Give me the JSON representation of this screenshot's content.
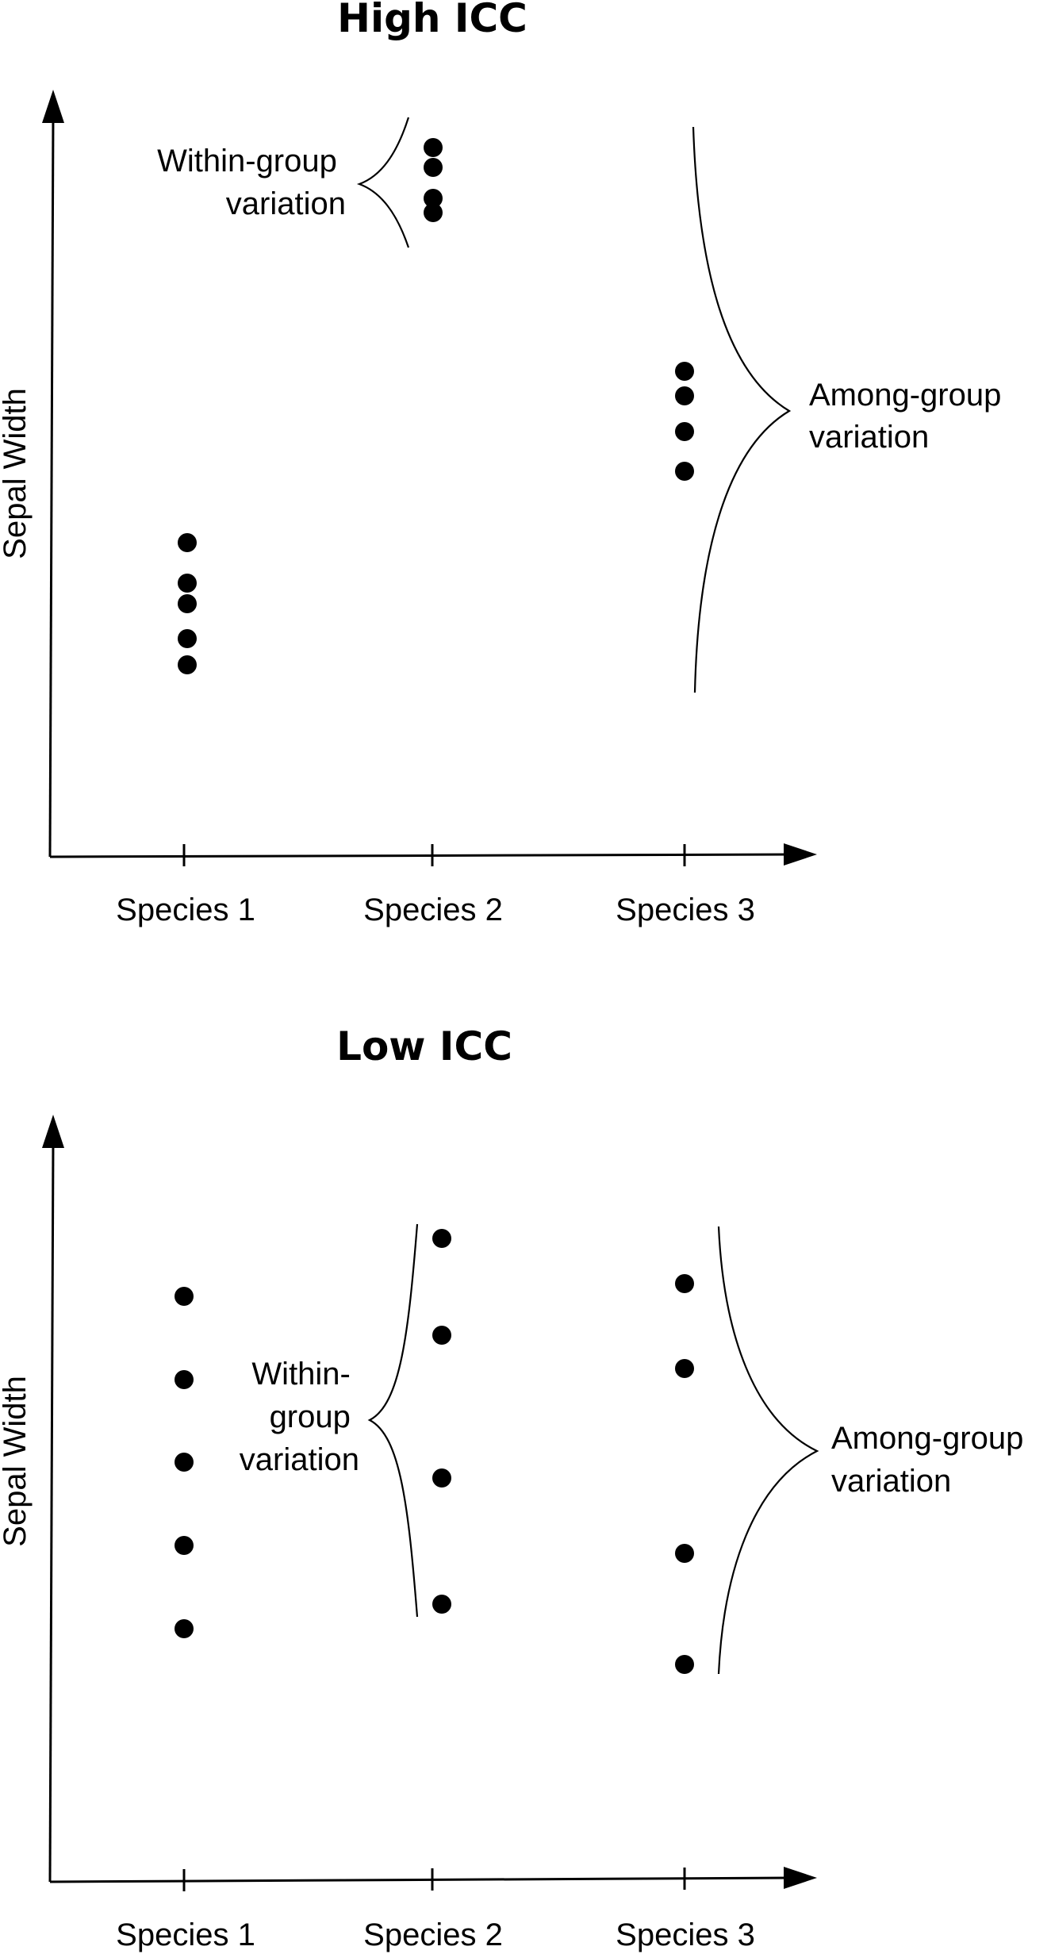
{
  "panels": [
    {
      "title": "High ICC",
      "ylabel": "Sepal Width",
      "categories": [
        "Species 1",
        "Species 2",
        "Species 3"
      ],
      "within_label": [
        "Within-group",
        "variation"
      ],
      "among_label": [
        "Among-group",
        "variation"
      ]
    },
    {
      "title": "Low ICC",
      "ylabel": "Sepal Width",
      "categories": [
        "Species 1",
        "Species 2",
        "Species 3"
      ],
      "within_label": [
        "Within-",
        "group",
        "variation"
      ],
      "among_label": [
        "Among-group",
        "variation"
      ]
    }
  ]
}
